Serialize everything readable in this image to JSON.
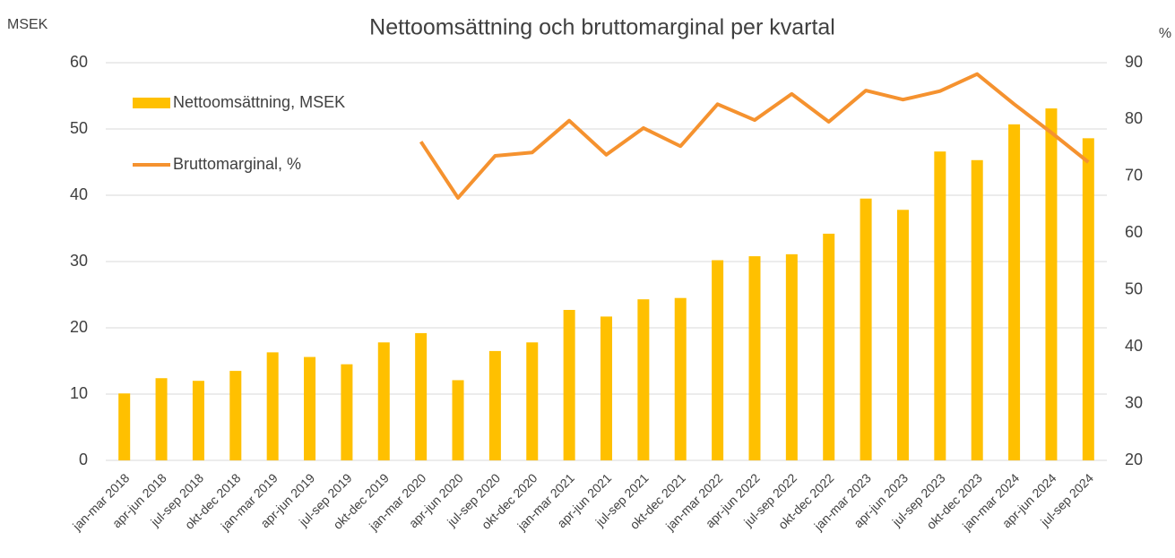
{
  "chart_data": {
    "type": "bar_line",
    "title": "Nettoomsättning och bruttomarginal per kvartal",
    "y_label": "MSEK",
    "y2_label": "%",
    "categories": [
      "jan-mar 2018",
      "apr-jun 2018",
      "jul-sep 2018",
      "okt-dec 2018",
      "jan-mar 2019",
      "apr-jun 2019",
      "jul-sep 2019",
      "okt-dec 2019",
      "jan-mar 2020",
      "apr-jun 2020",
      "jul-sep 2020",
      "okt-dec 2020",
      "jan-mar 2021",
      "apr-jun 2021",
      "jul-sep 2021",
      "okt-dec 2021",
      "jan-mar 2022",
      "apr-jun 2022",
      "jul-sep 2022",
      "okt-dec 2022",
      "jan-mar 2023",
      "apr-jun 2023",
      "jul-sep 2023",
      "okt-dec 2023",
      "jan-mar 2024",
      "apr-jun 2024",
      "jul-sep 2024"
    ],
    "series": [
      {
        "name": "Nettoomsättning, MSEK",
        "type": "bar",
        "color": "#ffc000",
        "axis": "y",
        "values": [
          10.1,
          12.4,
          12.0,
          13.5,
          16.3,
          15.6,
          14.5,
          17.8,
          19.2,
          12.1,
          16.5,
          17.8,
          22.7,
          21.7,
          24.3,
          24.5,
          30.2,
          30.8,
          31.1,
          34.2,
          39.5,
          37.8,
          46.6,
          45.3,
          50.7,
          53.1,
          48.6
        ]
      },
      {
        "name": "Bruttomarginal, %",
        "type": "line",
        "color": "#f5922f",
        "axis": "y2",
        "values": [
          null,
          null,
          null,
          null,
          null,
          null,
          null,
          null,
          76.1,
          66.2,
          73.6,
          74.2,
          79.8,
          73.8,
          78.5,
          75.3,
          82.7,
          79.9,
          84.5,
          79.6,
          85.1,
          83.5,
          85.0,
          88.0,
          82.7,
          77.7,
          72.5
        ]
      }
    ],
    "ylim": [
      0,
      60
    ],
    "yticks": [
      0,
      10,
      20,
      30,
      40,
      50,
      60
    ],
    "y2lim": [
      20,
      90
    ],
    "y2ticks": [
      20,
      30,
      40,
      50,
      60,
      70,
      80,
      90
    ],
    "grid": true
  }
}
